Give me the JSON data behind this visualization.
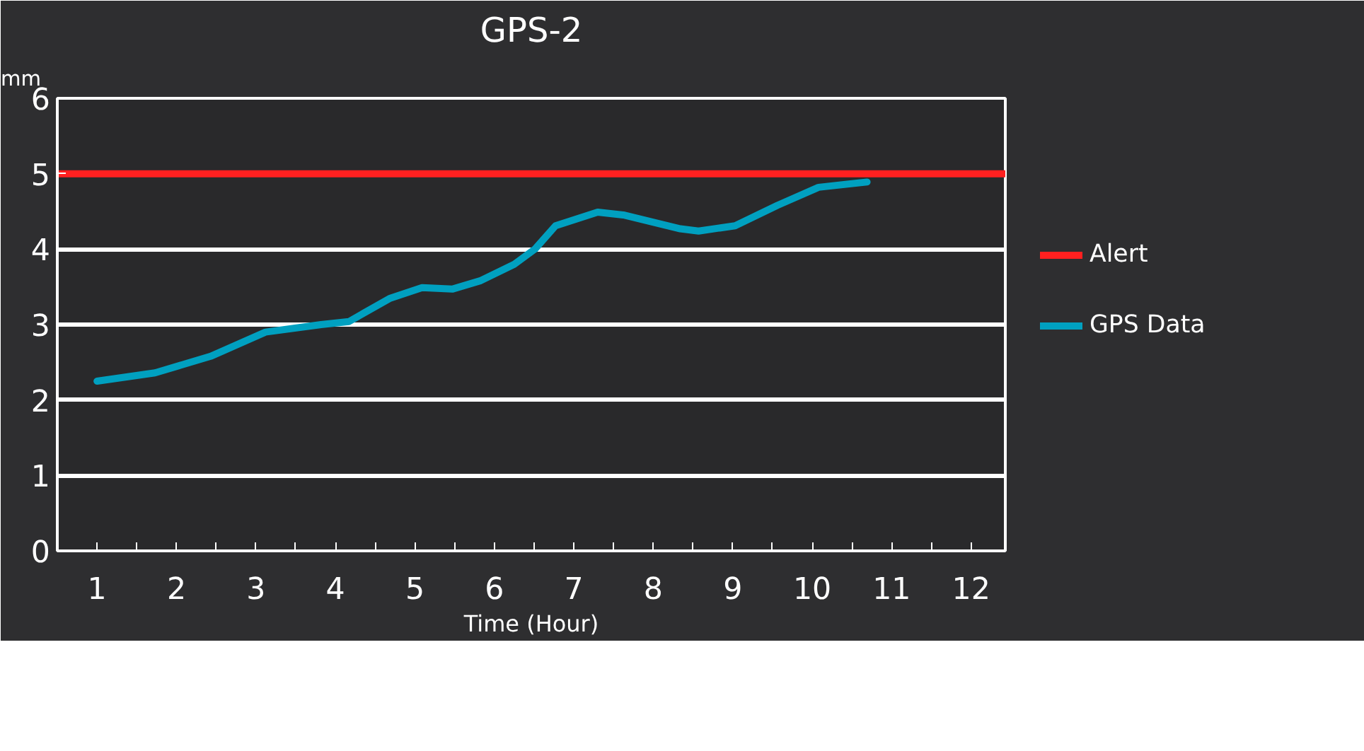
{
  "chart_data": {
    "type": "line",
    "title": "GPS-2",
    "xlabel": "Time (Hour)",
    "ylabel": "mm",
    "xlim": [
      0.5,
      12.43
    ],
    "xticks": [
      1,
      {
        "value": 1.5,
        "label": null
      },
      2,
      {
        "value": 2.5,
        "label": null
      },
      3,
      {
        "value": 3.5,
        "label": null
      },
      4,
      {
        "value": 4.5,
        "label": null
      },
      5,
      {
        "value": 5.5,
        "label": null
      },
      6,
      {
        "value": 6.5,
        "label": null
      },
      7,
      {
        "value": 7.5,
        "label": null
      },
      8,
      {
        "value": 8.5,
        "label": null
      },
      9,
      {
        "value": 9.5,
        "label": null
      },
      10,
      {
        "value": 10.5,
        "label": null
      },
      11,
      {
        "value": 11.5,
        "label": null
      },
      12
    ],
    "ylim": [
      0,
      6
    ],
    "yticks": [
      0,
      1,
      2,
      3,
      4,
      5,
      6
    ],
    "grid": "y",
    "legend": "right",
    "series": [
      {
        "name": "Alert",
        "color": "#ff2020",
        "x": [
          0.5,
          12.43
        ],
        "values": [
          5,
          5
        ]
      },
      {
        "name": "GPS Data",
        "color": "#00a0c0",
        "x": [
          1,
          1.73,
          2.43,
          3.12,
          3.82,
          4.17,
          4.69,
          5.09,
          5.47,
          5.82,
          6.25,
          6.51,
          6.77,
          7.3,
          7.64,
          8.34,
          8.57,
          9.03,
          9.56,
          10.08,
          10.69
        ],
        "values": [
          2.25,
          2.36,
          2.58,
          2.9,
          3.0,
          3.04,
          3.35,
          3.49,
          3.47,
          3.58,
          3.8,
          4.0,
          4.31,
          4.49,
          4.45,
          4.27,
          4.24,
          4.31,
          4.58,
          4.82,
          4.89
        ]
      }
    ]
  }
}
